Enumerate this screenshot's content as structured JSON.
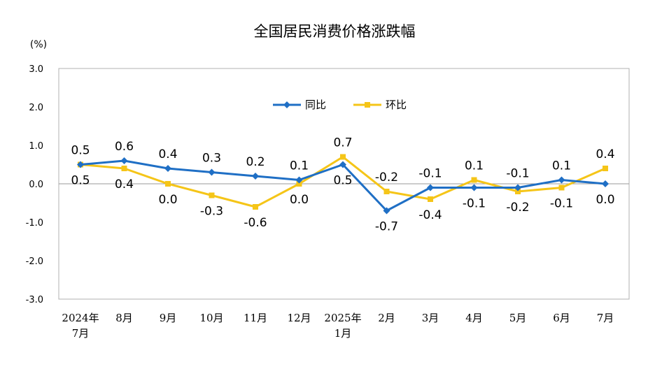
{
  "chart_data": {
    "type": "line",
    "title": "全国居民消费价格涨跌幅",
    "unit": "(%)",
    "categories": [
      [
        "2024年",
        "7月"
      ],
      [
        "8月"
      ],
      [
        "9月"
      ],
      [
        "10月"
      ],
      [
        "11月"
      ],
      [
        "12月"
      ],
      [
        "2025年",
        "1月"
      ],
      [
        "2月"
      ],
      [
        "3月"
      ],
      [
        "4月"
      ],
      [
        "5月"
      ],
      [
        "6月"
      ],
      [
        "7月"
      ]
    ],
    "ylim": [
      -3.0,
      3.0
    ],
    "yticks": [
      "3.0",
      "2.0",
      "1.0",
      "0.0",
      "-1.0",
      "-2.0",
      "-3.0"
    ],
    "legend_position": "top-center",
    "grid": false,
    "series": [
      {
        "name": "同比",
        "color": "#1F6FC5",
        "marker": "diamond",
        "values": [
          0.5,
          0.6,
          0.4,
          0.3,
          0.2,
          0.1,
          0.5,
          -0.7,
          -0.1,
          -0.1,
          -0.1,
          0.1,
          0.0
        ],
        "labels": [
          "0.5",
          "0.6",
          "0.4",
          "0.3",
          "0.2",
          "0.1",
          "0.5",
          "-0.7",
          "-0.1",
          "-0.1",
          "-0.1",
          "0.1",
          "0.0"
        ]
      },
      {
        "name": "环比",
        "color": "#F5C518",
        "marker": "square",
        "values": [
          0.5,
          0.4,
          0.0,
          -0.3,
          -0.6,
          0.0,
          0.7,
          -0.2,
          -0.4,
          0.1,
          -0.2,
          -0.1,
          0.4
        ],
        "labels": [
          "0.5",
          "0.4",
          "0.0",
          "-0.3",
          "-0.6",
          "0.0",
          "0.7",
          "-0.2",
          "-0.4",
          "0.1",
          "-0.2",
          "-0.1",
          "0.4"
        ]
      }
    ]
  }
}
